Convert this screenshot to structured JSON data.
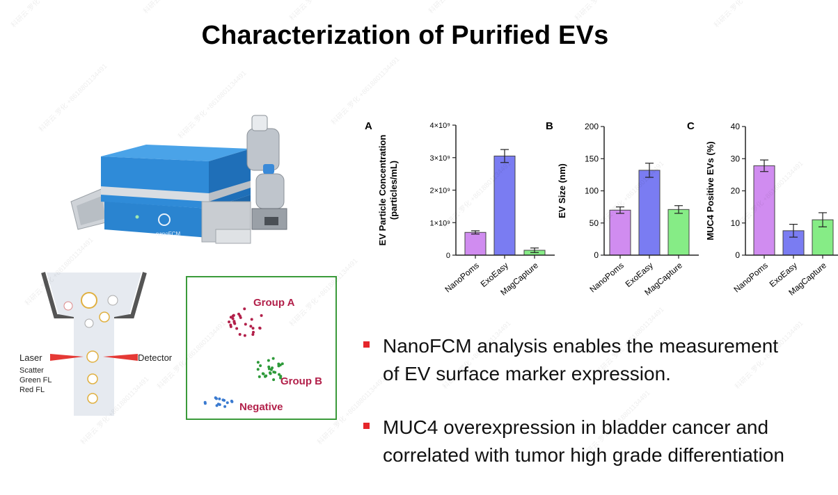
{
  "title": "Characterization of Purified EVs",
  "colors": {
    "nanopoms": "#d08cf0",
    "exoeasy": "#7a7cf2",
    "magcapture": "#86ec86",
    "bullet": "#e5262b",
    "instrument": "#2f8bd8",
    "group_a": "#b2204a",
    "group_b": "#2e9a3a",
    "negative": "#3a7ad0",
    "frame_green": "#3a9a3a"
  },
  "instrument": {
    "label": "nanoFCM"
  },
  "flow_diagram": {
    "laser_label": "Laser",
    "detector_label": "Detector",
    "channels": [
      "Scatter",
      "Green FL",
      "Red FL"
    ]
  },
  "scatter_panel": {
    "group_a": "Group A",
    "group_b": "Group B",
    "negative": "Negative"
  },
  "chart_data": [
    {
      "panel": "A",
      "type": "bar",
      "categories": [
        "NanoPoms",
        "ExoEasy",
        "MagCapture"
      ],
      "values": [
        700000000.0,
        3050000000.0,
        150000000.0
      ],
      "errors": [
        50000000.0,
        200000000.0,
        70000000.0
      ],
      "ylabel_lines": [
        "EV Particle Concentration",
        "(particles/mL)"
      ],
      "ylim": [
        0,
        4000000000.0
      ],
      "yticks": [
        0,
        1000000000.0,
        2000000000.0,
        3000000000.0,
        4000000000.0
      ],
      "ytick_labels": [
        "0",
        "1×10⁹",
        "2×10⁹",
        "3×10⁹",
        "4×10⁹"
      ]
    },
    {
      "panel": "B",
      "type": "bar",
      "categories": [
        "NanoPoms",
        "ExoEasy",
        "MagCapture"
      ],
      "values": [
        70,
        132,
        71
      ],
      "errors": [
        5,
        11,
        6
      ],
      "ylabel_lines": [
        "EV Size (nm)"
      ],
      "ylim": [
        0,
        200
      ],
      "yticks": [
        0,
        50,
        100,
        150,
        200
      ],
      "ytick_labels": [
        "0",
        "50",
        "100",
        "150",
        "200"
      ]
    },
    {
      "panel": "C",
      "type": "bar",
      "categories": [
        "NanoPoms",
        "ExoEasy",
        "MagCapture"
      ],
      "values": [
        27.8,
        7.6,
        11.0
      ],
      "errors": [
        1.8,
        2.0,
        2.2
      ],
      "ylabel_lines": [
        "MUC4 Positive EVs (%)"
      ],
      "ylim": [
        0,
        40
      ],
      "yticks": [
        0,
        10,
        20,
        30,
        40
      ],
      "ytick_labels": [
        "0",
        "10",
        "20",
        "30",
        "40"
      ]
    }
  ],
  "bullets": [
    {
      "line1": "NanoFCM analysis enables the measurement",
      "line2": "of EV surface marker expression."
    },
    {
      "line1": "MUC4 overexpression in bladder cancer and",
      "line2": "correlated with tumor high grade differentiation"
    }
  ],
  "watermark_text": "科研云·罗化 +8618801134491"
}
